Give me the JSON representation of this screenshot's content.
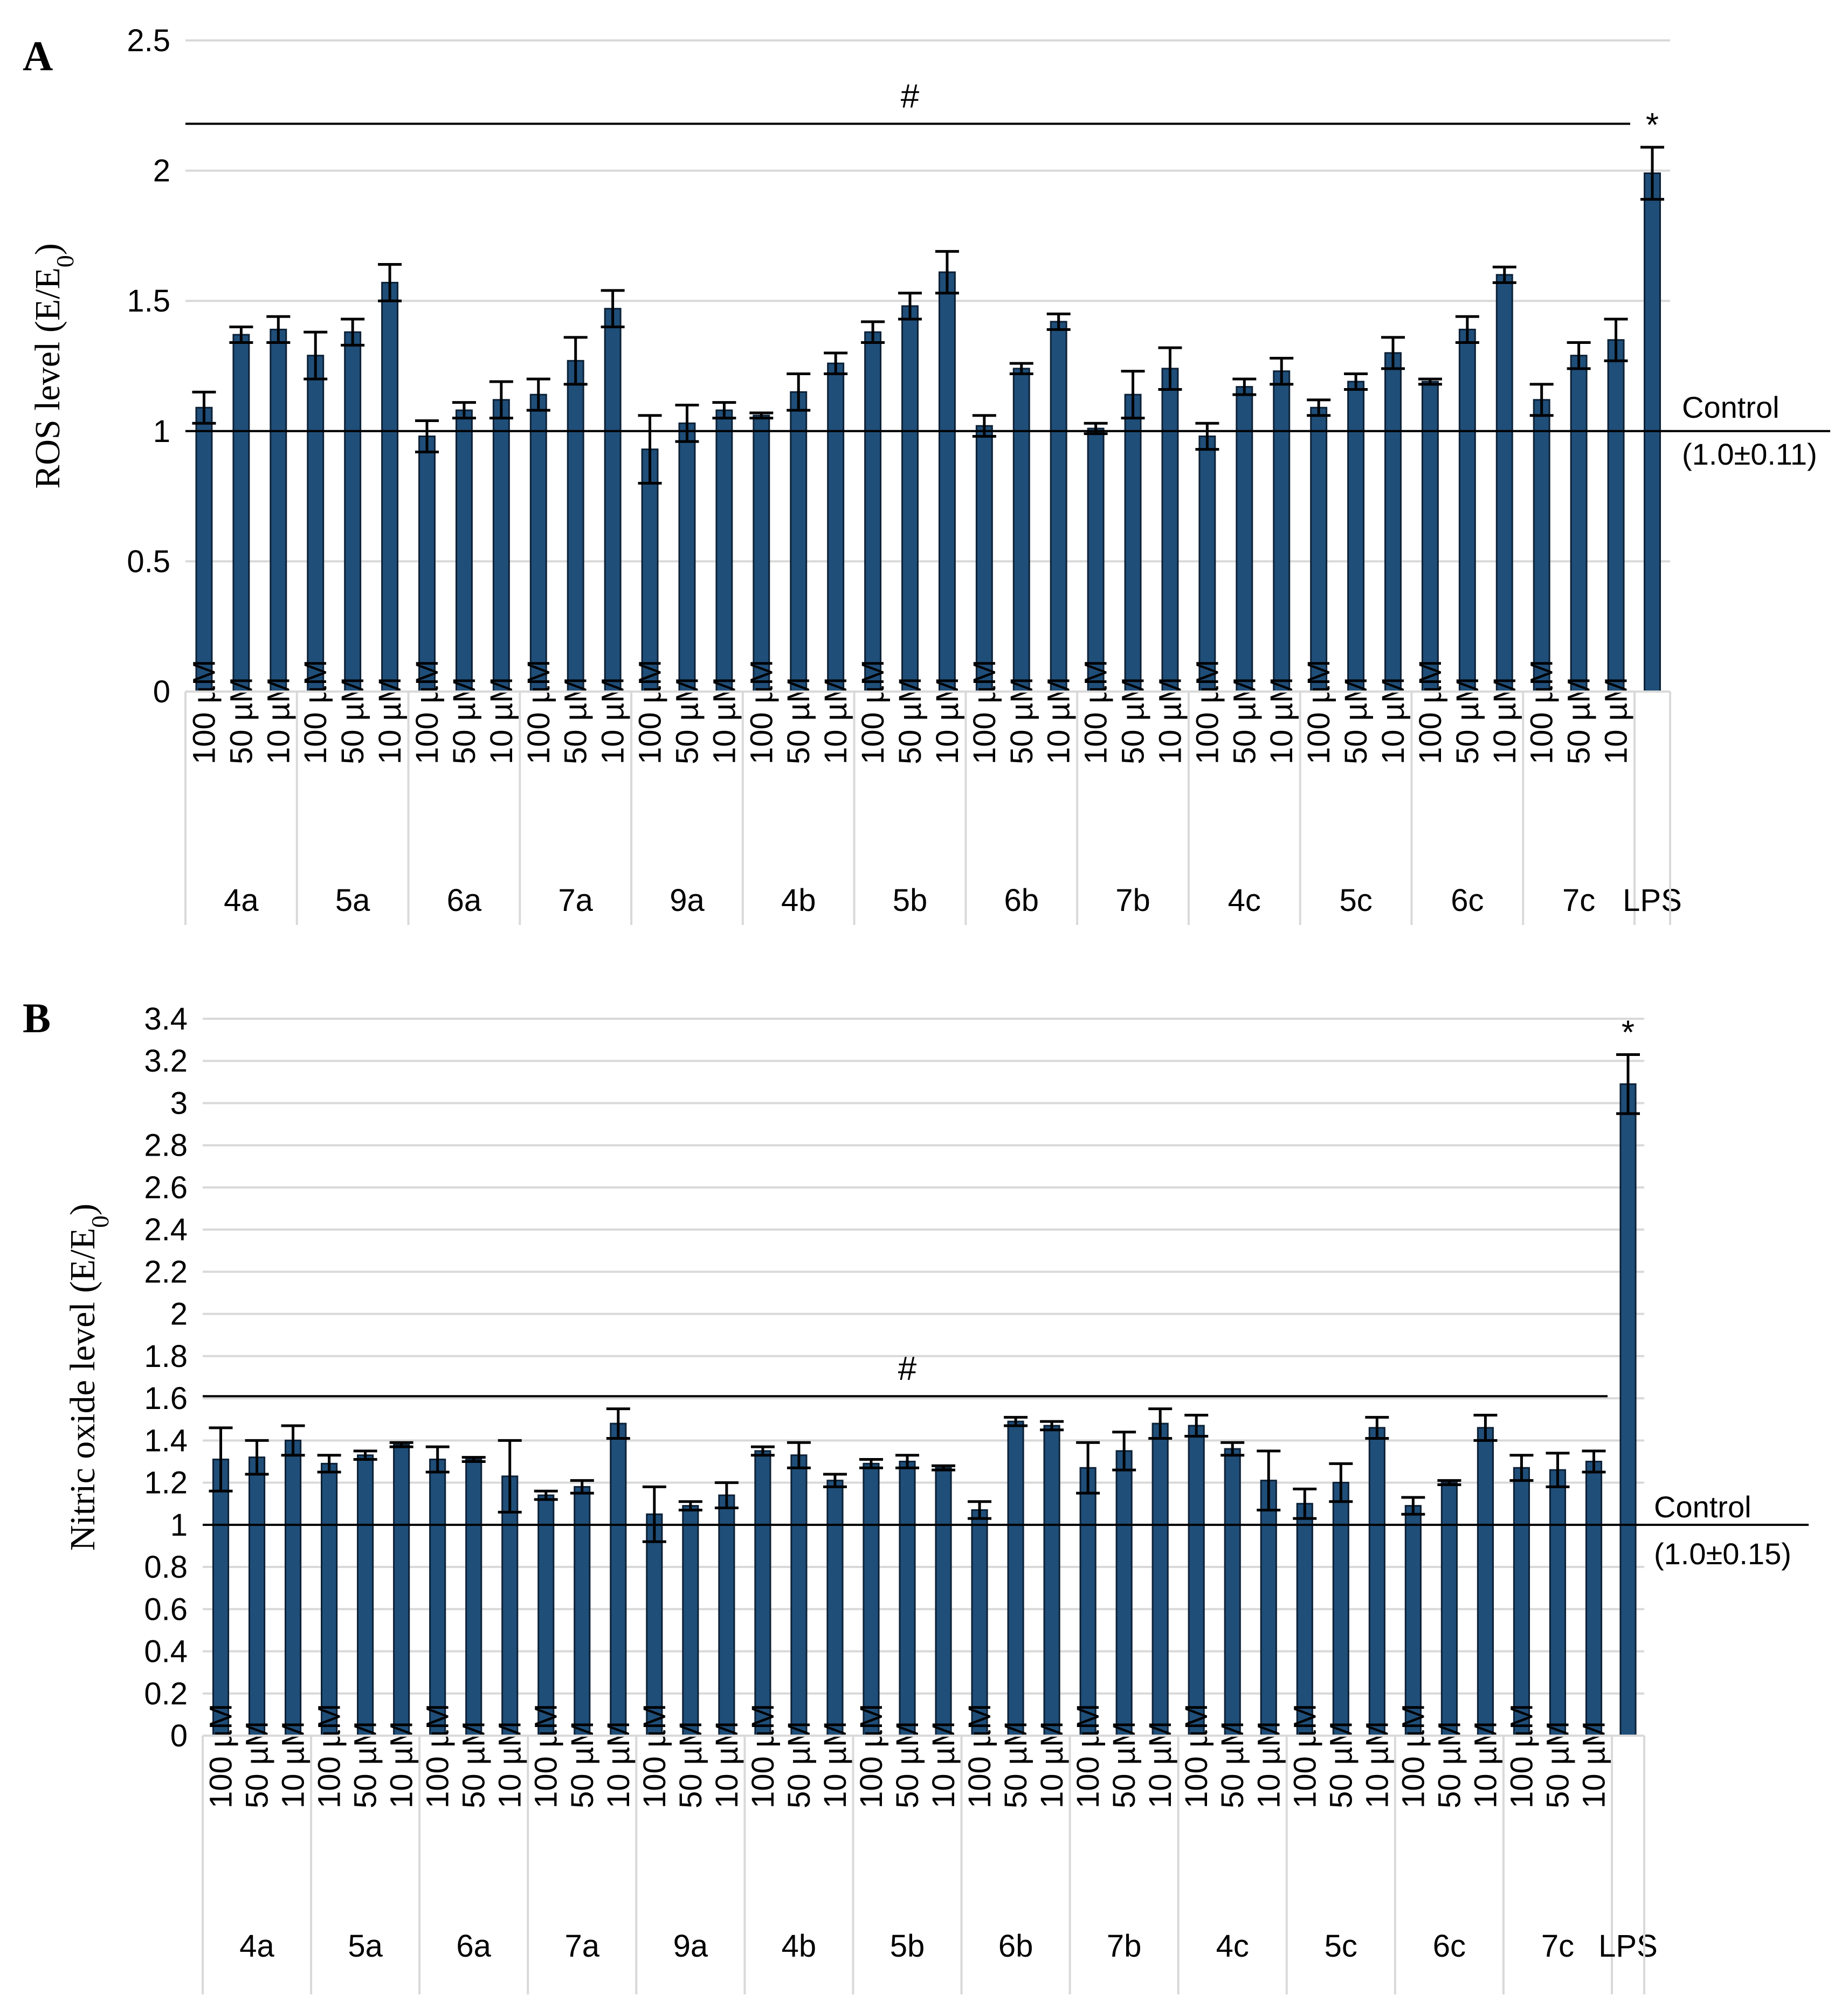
{
  "chart_data": [
    {
      "panel": "A",
      "type": "bar",
      "ylabel": "ROS level (E/E",
      "ylabel_sub": "0",
      "ylabel_close": ")",
      "ylim": [
        0,
        2.5
      ],
      "yticks": [
        0,
        0.5,
        1,
        1.5,
        2,
        2.5
      ],
      "ytick_labels": [
        "0",
        "0.5",
        "1",
        "1.5",
        "2",
        "2.5"
      ],
      "grid": true,
      "groups": [
        "4a",
        "5a",
        "6a",
        "7a",
        "9a",
        "4b",
        "5b",
        "6b",
        "7b",
        "4c",
        "5c",
        "6c",
        "7c",
        "LPS"
      ],
      "concentrations": [
        "100 µM",
        "50 µM",
        "10 µM"
      ],
      "series": [
        {
          "group": "4a",
          "values": [
            1.09,
            1.37,
            1.39
          ],
          "errors": [
            0.06,
            0.03,
            0.05
          ]
        },
        {
          "group": "5a",
          "values": [
            1.29,
            1.38,
            1.57
          ],
          "errors": [
            0.09,
            0.05,
            0.07
          ]
        },
        {
          "group": "6a",
          "values": [
            0.98,
            1.08,
            1.12
          ],
          "errors": [
            0.06,
            0.03,
            0.07
          ]
        },
        {
          "group": "7a",
          "values": [
            1.14,
            1.27,
            1.47
          ],
          "errors": [
            0.06,
            0.09,
            0.07
          ]
        },
        {
          "group": "9a",
          "values": [
            0.93,
            1.03,
            1.08
          ],
          "errors": [
            0.13,
            0.07,
            0.03
          ]
        },
        {
          "group": "4b",
          "values": [
            1.06,
            1.15,
            1.26
          ],
          "errors": [
            0.01,
            0.07,
            0.04
          ]
        },
        {
          "group": "5b",
          "values": [
            1.38,
            1.48,
            1.61
          ],
          "errors": [
            0.04,
            0.05,
            0.08
          ]
        },
        {
          "group": "6b",
          "values": [
            1.02,
            1.24,
            1.42
          ],
          "errors": [
            0.04,
            0.02,
            0.03
          ]
        },
        {
          "group": "7b",
          "values": [
            1.01,
            1.14,
            1.24
          ],
          "errors": [
            0.02,
            0.09,
            0.08
          ]
        },
        {
          "group": "4c",
          "values": [
            0.98,
            1.17,
            1.23
          ],
          "errors": [
            0.05,
            0.03,
            0.05
          ]
        },
        {
          "group": "5c",
          "values": [
            1.09,
            1.19,
            1.3
          ],
          "errors": [
            0.03,
            0.03,
            0.06
          ]
        },
        {
          "group": "6c",
          "values": [
            1.19,
            1.39,
            1.6
          ],
          "errors": [
            0.01,
            0.05,
            0.03
          ]
        },
        {
          "group": "7c",
          "values": [
            1.12,
            1.29,
            1.35
          ],
          "errors": [
            0.06,
            0.05,
            0.08
          ]
        },
        {
          "group": "LPS",
          "values": [
            1.99
          ],
          "errors": [
            0.1
          ]
        }
      ],
      "control_line": 1.0,
      "control_label": "Control",
      "control_value": "(1.0±0.11)",
      "hash_mark": "#",
      "hash_y": 2.18,
      "star_mark": "*",
      "bar_color": "#1f4e79"
    },
    {
      "panel": "B",
      "type": "bar",
      "ylabel": "Nitric oxide level (E/E",
      "ylabel_sub": "0",
      "ylabel_close": ")",
      "ylim": [
        0,
        3.4
      ],
      "yticks": [
        0,
        0.2,
        0.4,
        0.6,
        0.8,
        1,
        1.2,
        1.4,
        1.6,
        1.8,
        2,
        2.2,
        2.4,
        2.6,
        2.8,
        3,
        3.2,
        3.4
      ],
      "ytick_labels": [
        "0",
        "0.2",
        "0.4",
        "0.6",
        "0.8",
        "1",
        "1.2",
        "1.4",
        "1.6",
        "1.8",
        "2",
        "2.2",
        "2.4",
        "2.6",
        "2.8",
        "3",
        "3.2",
        "3.4"
      ],
      "grid": true,
      "groups": [
        "4a",
        "5a",
        "6a",
        "7a",
        "9a",
        "4b",
        "5b",
        "6b",
        "7b",
        "4c",
        "5c",
        "6c",
        "7c",
        "LPS"
      ],
      "concentrations": [
        "100 µM",
        "50 µM",
        "10 µM"
      ],
      "series": [
        {
          "group": "4a",
          "values": [
            1.31,
            1.32,
            1.4
          ],
          "errors": [
            0.15,
            0.08,
            0.07
          ]
        },
        {
          "group": "5a",
          "values": [
            1.29,
            1.33,
            1.38
          ],
          "errors": [
            0.04,
            0.02,
            0.01
          ]
        },
        {
          "group": "6a",
          "values": [
            1.31,
            1.31,
            1.23
          ],
          "errors": [
            0.06,
            0.01,
            0.17
          ]
        },
        {
          "group": "7a",
          "values": [
            1.14,
            1.18,
            1.48
          ],
          "errors": [
            0.02,
            0.03,
            0.07
          ]
        },
        {
          "group": "9a",
          "values": [
            1.05,
            1.09,
            1.14
          ],
          "errors": [
            0.13,
            0.02,
            0.06
          ]
        },
        {
          "group": "4b",
          "values": [
            1.35,
            1.33,
            1.21
          ],
          "errors": [
            0.02,
            0.06,
            0.03
          ]
        },
        {
          "group": "5b",
          "values": [
            1.29,
            1.3,
            1.27
          ],
          "errors": [
            0.02,
            0.03,
            0.01
          ]
        },
        {
          "group": "6b",
          "values": [
            1.07,
            1.49,
            1.47
          ],
          "errors": [
            0.04,
            0.02,
            0.02
          ]
        },
        {
          "group": "7b",
          "values": [
            1.27,
            1.35,
            1.48
          ],
          "errors": [
            0.12,
            0.09,
            0.07
          ]
        },
        {
          "group": "4c",
          "values": [
            1.47,
            1.36,
            1.21
          ],
          "errors": [
            0.05,
            0.03,
            0.14
          ]
        },
        {
          "group": "5c",
          "values": [
            1.1,
            1.2,
            1.46
          ],
          "errors": [
            0.07,
            0.09,
            0.05
          ]
        },
        {
          "group": "6c",
          "values": [
            1.09,
            1.2,
            1.46
          ],
          "errors": [
            0.04,
            0.01,
            0.06
          ]
        },
        {
          "group": "7c",
          "values": [
            1.27,
            1.26,
            1.3
          ],
          "errors": [
            0.06,
            0.08,
            0.05
          ]
        },
        {
          "group": "LPS",
          "values": [
            3.09
          ],
          "errors": [
            0.14
          ]
        }
      ],
      "control_line": 1.0,
      "control_label": "Control",
      "control_value": "(1.0±0.15)",
      "hash_mark": "#",
      "hash_y": 1.61,
      "star_mark": "*",
      "bar_color": "#1f4e79"
    }
  ]
}
